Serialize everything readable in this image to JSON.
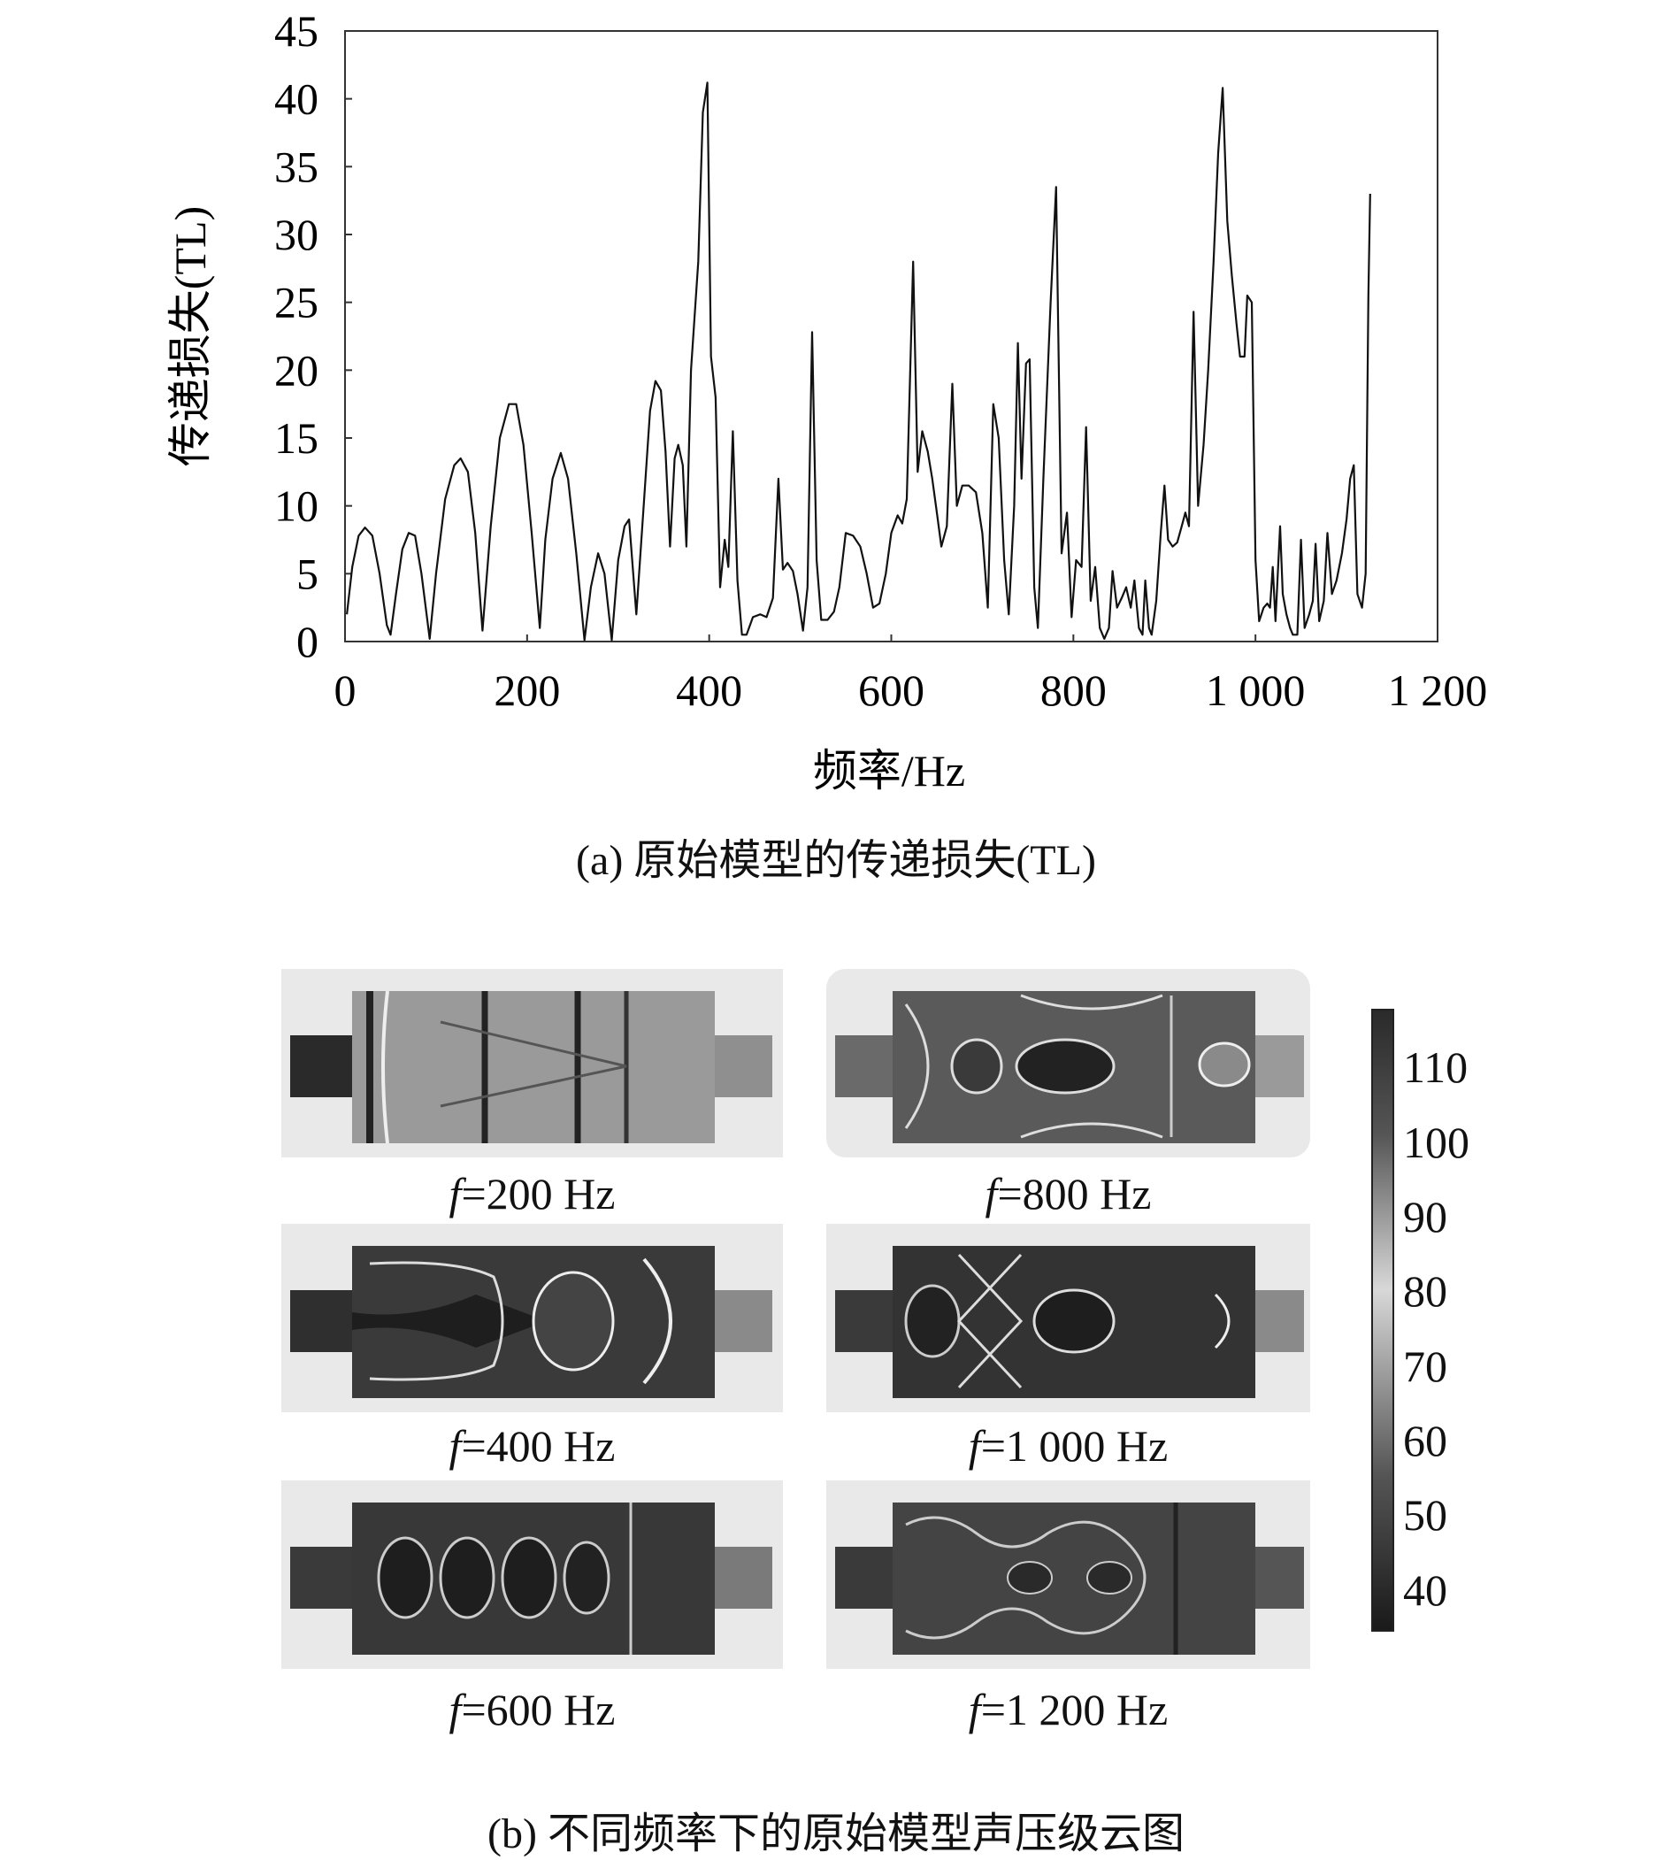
{
  "chart_data": {
    "type": "line",
    "title": "",
    "xlabel": "频率/Hz",
    "ylabel": "传递损失(TL)",
    "xlim": [
      0,
      1200
    ],
    "ylim": [
      0,
      45
    ],
    "xticks": [
      0,
      200,
      400,
      600,
      800,
      1000,
      1200
    ],
    "xtick_labels": [
      "0",
      "200",
      "400",
      "600",
      "800",
      "1 000",
      "1 200"
    ],
    "yticks": [
      0,
      5,
      10,
      15,
      20,
      25,
      30,
      35,
      40,
      45
    ],
    "ytick_labels": [
      "0",
      "5",
      "10",
      "15",
      "20",
      "25",
      "30",
      "35",
      "40",
      "45"
    ],
    "grid": false,
    "series": [
      {
        "points": [
          [
            2,
            2
          ],
          [
            8,
            5.5
          ],
          [
            15,
            7.8
          ],
          [
            22,
            8.4
          ],
          [
            30,
            7.8
          ],
          [
            38,
            5
          ],
          [
            46,
            1.2
          ],
          [
            50,
            0.5
          ],
          [
            56,
            3.5
          ],
          [
            63,
            6.8
          ],
          [
            70,
            8
          ],
          [
            77,
            7.8
          ],
          [
            84,
            5
          ],
          [
            93,
            0.2
          ],
          [
            100,
            5
          ],
          [
            110,
            10.5
          ],
          [
            120,
            13
          ],
          [
            127,
            13.5
          ],
          [
            135,
            12.5
          ],
          [
            143,
            8
          ],
          [
            151,
            0.8
          ],
          [
            160,
            8.5
          ],
          [
            170,
            15
          ],
          [
            180,
            17.5
          ],
          [
            188,
            17.5
          ],
          [
            196,
            14.5
          ],
          [
            205,
            8
          ],
          [
            214,
            1
          ],
          [
            220,
            7.5
          ],
          [
            228,
            12
          ],
          [
            237,
            13.9
          ],
          [
            245,
            12
          ],
          [
            254,
            6.5
          ],
          [
            263,
            0.1
          ],
          [
            270,
            4
          ],
          [
            278,
            6.5
          ],
          [
            285,
            5
          ],
          [
            293,
            0.1
          ],
          [
            300,
            6
          ],
          [
            307,
            8.5
          ],
          [
            312,
            9
          ],
          [
            320,
            2
          ],
          [
            328,
            10
          ],
          [
            335,
            17
          ],
          [
            341,
            19.2
          ],
          [
            347,
            18.5
          ],
          [
            352,
            14
          ],
          [
            357,
            7
          ],
          [
            362,
            13.5
          ],
          [
            366,
            14.5
          ],
          [
            371,
            13
          ],
          [
            375,
            7
          ],
          [
            380,
            20
          ],
          [
            388,
            28
          ],
          [
            393,
            39
          ],
          [
            398,
            41.2
          ],
          [
            402,
            21
          ],
          [
            407,
            18
          ],
          [
            412,
            4
          ],
          [
            417,
            7.5
          ],
          [
            421,
            5.5
          ],
          [
            426,
            15.5
          ],
          [
            431,
            4.5
          ],
          [
            436,
            0.5
          ],
          [
            441,
            0.5
          ],
          [
            448,
            1.8
          ],
          [
            456,
            2
          ],
          [
            463,
            1.8
          ],
          [
            470,
            3.2
          ],
          [
            476,
            12
          ],
          [
            481,
            5.3
          ],
          [
            486,
            5.8
          ],
          [
            492,
            5.2
          ],
          [
            497,
            3.5
          ],
          [
            503,
            0.8
          ],
          [
            508,
            4
          ],
          [
            513,
            22.8
          ],
          [
            518,
            6
          ],
          [
            523,
            1.6
          ],
          [
            530,
            1.6
          ],
          [
            537,
            2.2
          ],
          [
            543,
            4
          ],
          [
            550,
            8
          ],
          [
            558,
            7.8
          ],
          [
            566,
            7
          ],
          [
            573,
            5
          ],
          [
            580,
            2.5
          ],
          [
            587,
            2.8
          ],
          [
            594,
            5
          ],
          [
            600,
            8
          ],
          [
            607,
            9.3
          ],
          [
            612,
            8.7
          ],
          [
            617,
            10.5
          ],
          [
            624,
            28
          ],
          [
            629,
            12.5
          ],
          [
            634,
            15.5
          ],
          [
            640,
            14
          ],
          [
            645,
            12
          ],
          [
            650,
            9.5
          ],
          [
            655,
            7
          ],
          [
            661,
            8.5
          ],
          [
            667,
            19
          ],
          [
            672,
            10
          ],
          [
            678,
            11.5
          ],
          [
            685,
            11.5
          ],
          [
            693,
            11
          ],
          [
            700,
            8
          ],
          [
            706,
            2.5
          ],
          [
            712,
            17.5
          ],
          [
            718,
            15
          ],
          [
            724,
            6
          ],
          [
            729,
            2
          ],
          [
            735,
            10
          ],
          [
            739,
            22
          ],
          [
            743,
            12
          ],
          [
            748,
            20.5
          ],
          [
            752,
            20.8
          ],
          [
            757,
            4
          ],
          [
            761,
            1
          ],
          [
            767,
            12
          ],
          [
            775,
            25
          ],
          [
            781,
            33.5
          ],
          [
            787,
            6.5
          ],
          [
            793,
            9.5
          ],
          [
            798,
            1.8
          ],
          [
            803,
            6
          ],
          [
            809,
            5.5
          ],
          [
            814,
            15.8
          ],
          [
            819,
            3
          ],
          [
            824,
            5.5
          ],
          [
            829,
            1
          ],
          [
            834,
            0.2
          ],
          [
            839,
            1
          ],
          [
            843,
            5.2
          ],
          [
            848,
            2.5
          ],
          [
            853,
            3.2
          ],
          [
            858,
            4
          ],
          [
            863,
            2.5
          ],
          [
            867,
            4.5
          ],
          [
            872,
            1
          ],
          [
            876,
            0.5
          ],
          [
            879,
            4.5
          ],
          [
            883,
            1
          ],
          [
            886,
            0.5
          ],
          [
            891,
            3
          ],
          [
            896,
            8
          ],
          [
            900,
            11.5
          ],
          [
            904,
            7.5
          ],
          [
            909,
            7
          ],
          [
            914,
            7.3
          ],
          [
            919,
            8.5
          ],
          [
            923,
            9.5
          ],
          [
            927,
            8.5
          ],
          [
            932,
            24.3
          ],
          [
            937,
            10
          ],
          [
            943,
            14.5
          ],
          [
            948,
            20
          ],
          [
            954,
            28
          ],
          [
            959,
            36
          ],
          [
            964,
            40.8
          ],
          [
            969,
            31
          ],
          [
            974,
            27
          ],
          [
            979,
            23.5
          ],
          [
            983,
            21
          ],
          [
            988,
            21
          ],
          [
            991,
            25.5
          ],
          [
            996,
            25
          ],
          [
            1000,
            6
          ],
          [
            1004,
            1.5
          ],
          [
            1009,
            2.5
          ],
          [
            1013,
            2.8
          ],
          [
            1016,
            2.5
          ],
          [
            1019,
            5.5
          ],
          [
            1022,
            1.5
          ],
          [
            1027,
            8.5
          ],
          [
            1030,
            3.5
          ],
          [
            1034,
            2
          ],
          [
            1038,
            1
          ],
          [
            1041,
            0.5
          ],
          [
            1046,
            0.5
          ],
          [
            1050,
            7.5
          ],
          [
            1054,
            1
          ],
          [
            1059,
            2
          ],
          [
            1063,
            3
          ],
          [
            1066,
            7.2
          ],
          [
            1070,
            1.5
          ],
          [
            1075,
            3
          ],
          [
            1079,
            8
          ],
          [
            1084,
            3.5
          ],
          [
            1089,
            4.5
          ],
          [
            1095,
            6.5
          ],
          [
            1100,
            9
          ],
          [
            1104,
            12
          ],
          [
            1108,
            13
          ],
          [
            1112,
            3.5
          ],
          [
            1117,
            2.5
          ],
          [
            1121,
            5
          ],
          [
            1124,
            25.5
          ],
          [
            1126,
            33
          ]
        ]
      }
    ]
  },
  "captions": {
    "a": "(a) 原始模型的传递损失(TL)",
    "b": "(b) 不同频率下的原始模型声压级云图"
  },
  "sound_pressure_maps": [
    {
      "f_symbol": "f",
      "label": "=200 Hz"
    },
    {
      "f_symbol": "f",
      "label": "=800 Hz"
    },
    {
      "f_symbol": "f",
      "label": "=400 Hz"
    },
    {
      "f_symbol": "f",
      "label": "=1 000 Hz"
    },
    {
      "f_symbol": "f",
      "label": "=600 Hz"
    },
    {
      "f_symbol": "f",
      "label": "=1 200 Hz"
    }
  ],
  "colorbar": {
    "ticks": [
      "110",
      "100",
      "90",
      "80",
      "70",
      "60",
      "50",
      "40"
    ],
    "tick_values": [
      110,
      100,
      90,
      80,
      70,
      60,
      50,
      40
    ],
    "range": [
      35,
      118
    ],
    "colors": {
      "low": "#1a1a1a",
      "mid": "#d8d8d8",
      "high": "#2a2a2a"
    }
  },
  "colors": {
    "line": "#111111",
    "axis": "#333333"
  }
}
